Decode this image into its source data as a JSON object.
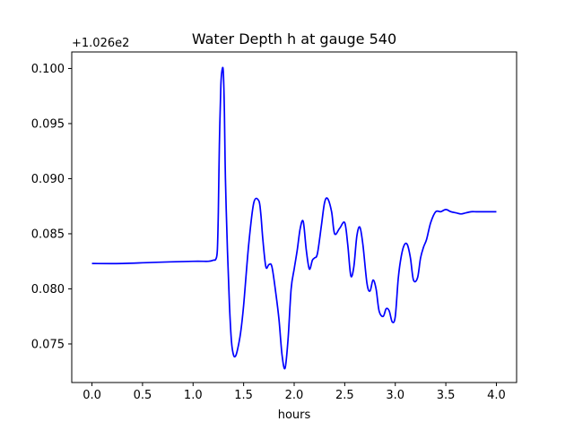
{
  "chart_data": {
    "type": "line",
    "title": "Water Depth h at gauge 540",
    "xlabel": "hours",
    "ylabel": "",
    "offset_label": "+1.026e2",
    "xlim": [
      -0.2,
      4.2
    ],
    "ylim": [
      0.0715,
      0.1015
    ],
    "x_ticks": [
      0.0,
      0.5,
      1.0,
      1.5,
      2.0,
      2.5,
      3.0,
      3.5,
      4.0
    ],
    "x_tick_labels": [
      "0.0",
      "0.5",
      "1.0",
      "1.5",
      "2.0",
      "2.5",
      "3.0",
      "3.5",
      "4.0"
    ],
    "y_ticks": [
      0.075,
      0.08,
      0.085,
      0.09,
      0.095,
      0.1
    ],
    "y_tick_labels": [
      "0.075",
      "0.080",
      "0.085",
      "0.090",
      "0.095",
      "0.100"
    ],
    "grid": false,
    "legend": "none",
    "series": [
      {
        "color": "#0000ff",
        "x": [
          0.0,
          0.3,
          0.6,
          1.0,
          1.15,
          1.2,
          1.225,
          1.24,
          1.25,
          1.26,
          1.275,
          1.29,
          1.3,
          1.31,
          1.32,
          1.34,
          1.36,
          1.38,
          1.4,
          1.42,
          1.44,
          1.47,
          1.5,
          1.55,
          1.6,
          1.65,
          1.67,
          1.69,
          1.72,
          1.75,
          1.78,
          1.82,
          1.85,
          1.88,
          1.91,
          1.94,
          1.97,
          2.0,
          2.03,
          2.06,
          2.09,
          2.12,
          2.15,
          2.18,
          2.2,
          2.23,
          2.27,
          2.3,
          2.33,
          2.37,
          2.4,
          2.45,
          2.5,
          2.53,
          2.56,
          2.59,
          2.62,
          2.65,
          2.68,
          2.72,
          2.75,
          2.78,
          2.81,
          2.84,
          2.88,
          2.91,
          2.94,
          2.97,
          3.0,
          3.03,
          3.06,
          3.09,
          3.12,
          3.15,
          3.18,
          3.22,
          3.25,
          3.28,
          3.31,
          3.35,
          3.4,
          3.45,
          3.5,
          3.55,
          3.6,
          3.65,
          3.7,
          3.75,
          3.8,
          3.85,
          3.9,
          3.95,
          4.0
        ],
        "y": [
          0.0823,
          0.0823,
          0.0824,
          0.0825,
          0.0825,
          0.0826,
          0.0827,
          0.0835,
          0.087,
          0.093,
          0.0985,
          0.1,
          0.0995,
          0.096,
          0.09,
          0.0835,
          0.0785,
          0.0752,
          0.074,
          0.0739,
          0.0745,
          0.076,
          0.0785,
          0.084,
          0.0878,
          0.088,
          0.0868,
          0.0845,
          0.082,
          0.0822,
          0.082,
          0.0795,
          0.0772,
          0.074,
          0.0728,
          0.0755,
          0.08,
          0.0818,
          0.0835,
          0.0855,
          0.0861,
          0.0835,
          0.0818,
          0.0826,
          0.0828,
          0.0832,
          0.0858,
          0.0878,
          0.0882,
          0.087,
          0.085,
          0.0855,
          0.086,
          0.084,
          0.0812,
          0.082,
          0.0848,
          0.0856,
          0.084,
          0.0805,
          0.0798,
          0.0808,
          0.08,
          0.078,
          0.0775,
          0.0782,
          0.078,
          0.077,
          0.0775,
          0.081,
          0.083,
          0.084,
          0.084,
          0.0828,
          0.0808,
          0.081,
          0.0828,
          0.0838,
          0.0845,
          0.086,
          0.087,
          0.087,
          0.0872,
          0.087,
          0.0869,
          0.0868,
          0.0869,
          0.087,
          0.087,
          0.087,
          0.087,
          0.087,
          0.087
        ]
      }
    ]
  }
}
